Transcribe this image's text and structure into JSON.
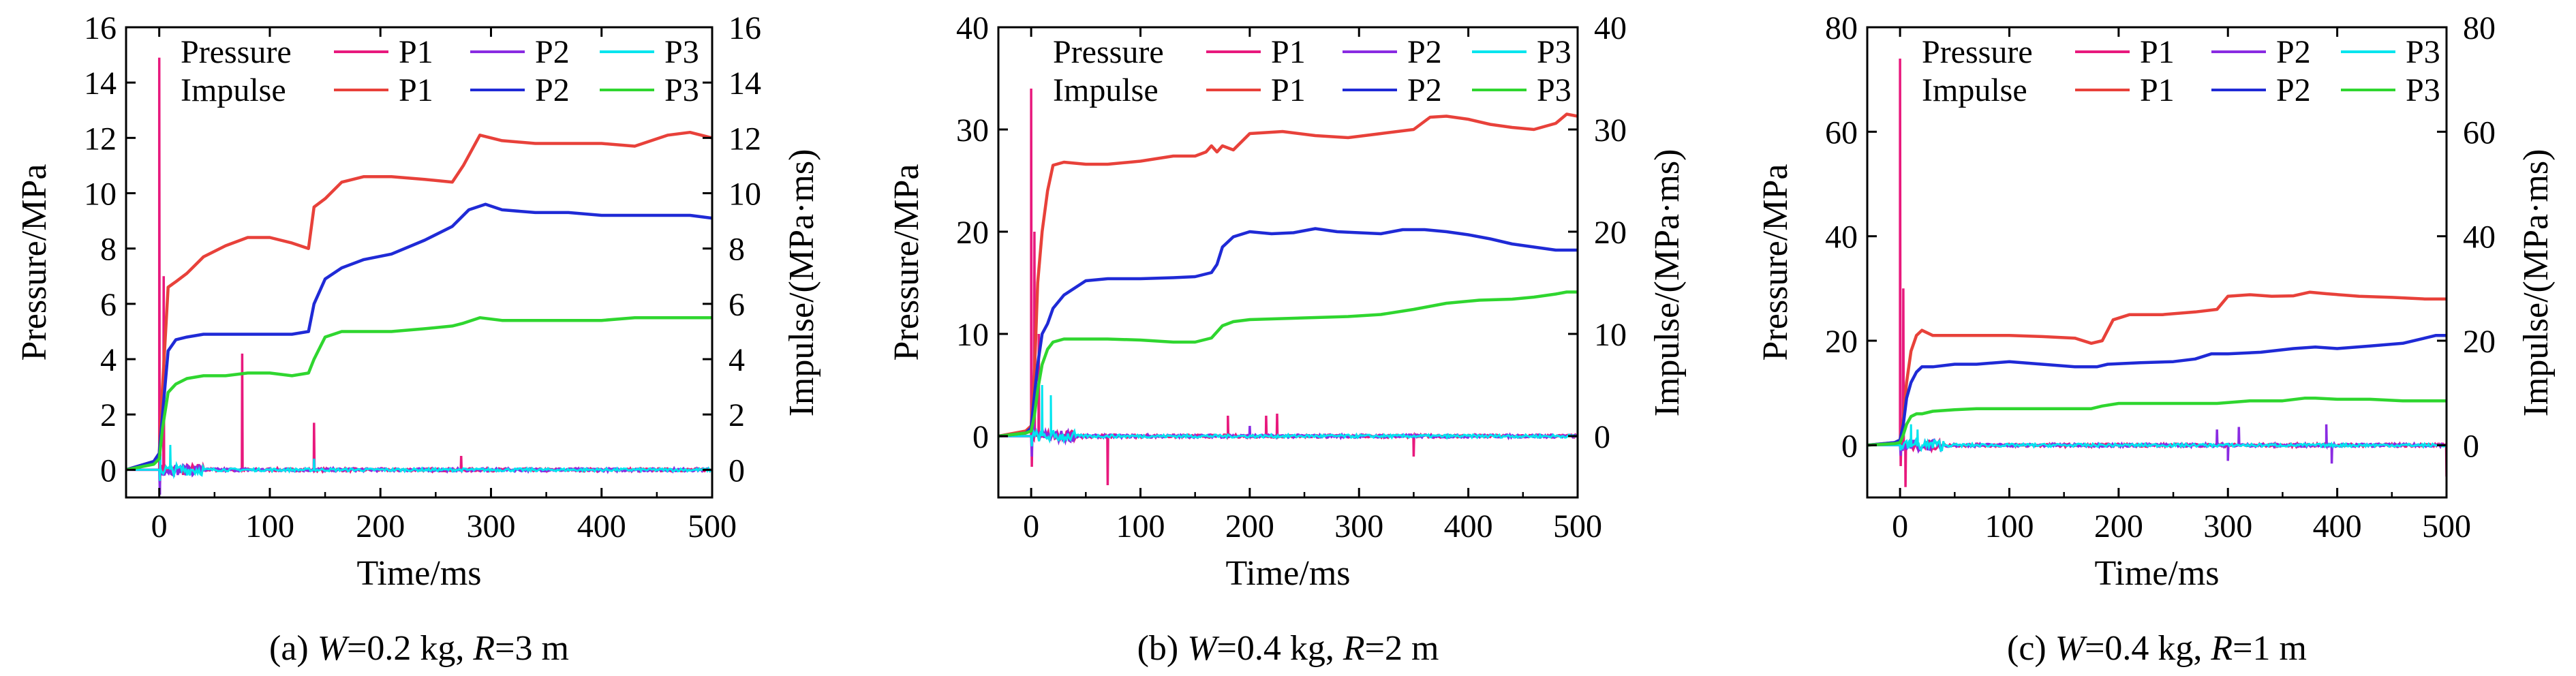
{
  "colors": {
    "pressure_P1": "#e8197d",
    "pressure_P2": "#8a2be2",
    "pressure_P3": "#00e5ee",
    "impulse_P1": "#e8413a",
    "impulse_P2": "#1f2ad6",
    "impulse_P3": "#2fd62f"
  },
  "chart_data": [
    {
      "type": "line",
      "title": "(a) W=0.2 kg, R=3 m",
      "title_parts": {
        "prefix": "(a) ",
        "w_symbol": "W",
        "w_value": "=0.2 kg, ",
        "r_symbol": "R",
        "r_value": "=3 m"
      },
      "xlabel": "Time/ms",
      "ylabel": "Pressure/MPa",
      "y2label": "Impulse/(MPa·ms)",
      "xlim": [
        -30,
        500
      ],
      "ylim": [
        -1,
        16
      ],
      "y2lim": [
        -1,
        16
      ],
      "xticks": [
        "0",
        "100",
        "200",
        "300",
        "400",
        "500"
      ],
      "yticks": [
        "0",
        "2",
        "4",
        "6",
        "8",
        "10",
        "12",
        "14",
        "16"
      ],
      "y2ticks": [
        "0",
        "2",
        "4",
        "6",
        "8",
        "10",
        "12",
        "14",
        "16"
      ],
      "legend": {
        "placement": "top",
        "rows": [
          {
            "label": "Pressure",
            "entries": [
              "P1",
              "P2",
              "P3"
            ]
          },
          {
            "label": "Impulse",
            "entries": [
              "P1",
              "P2",
              "P3"
            ]
          }
        ]
      },
      "pressure": [
        {
          "name": "P1",
          "spikes": [
            [
              0,
              14.9
            ],
            [
              4,
              7.0
            ],
            [
              75,
              4.2
            ],
            [
              140,
              1.7
            ],
            [
              273,
              0.5
            ]
          ],
          "min": -0.6
        },
        {
          "name": "P2",
          "spikes": [
            [
              1,
              0.9
            ],
            [
              140,
              0.4
            ]
          ],
          "min": -0.9
        },
        {
          "name": "P3",
          "spikes": [
            [
              1,
              0.5
            ],
            [
              10,
              0.9
            ],
            [
              140,
              0.4
            ]
          ],
          "min": -0.4
        }
      ],
      "impulse": [
        {
          "name": "P1",
          "x": [
            -30,
            -5,
            0,
            3,
            8,
            15,
            25,
            40,
            60,
            80,
            100,
            120,
            135,
            140,
            150,
            165,
            185,
            210,
            240,
            265,
            275,
            290,
            310,
            340,
            370,
            400,
            430,
            460,
            480,
            500
          ],
          "y": [
            0,
            0.3,
            0.6,
            3.0,
            6.6,
            6.8,
            7.1,
            7.7,
            8.1,
            8.4,
            8.4,
            8.2,
            8.0,
            9.5,
            9.8,
            10.4,
            10.6,
            10.6,
            10.5,
            10.4,
            11.0,
            12.1,
            11.9,
            11.8,
            11.8,
            11.8,
            11.7,
            12.1,
            12.2,
            12.0
          ]
        },
        {
          "name": "P2",
          "x": [
            -30,
            -5,
            0,
            3,
            8,
            15,
            25,
            40,
            60,
            80,
            100,
            120,
            135,
            140,
            150,
            165,
            185,
            210,
            240,
            265,
            280,
            295,
            310,
            340,
            370,
            400,
            430,
            460,
            480,
            500
          ],
          "y": [
            0,
            0.3,
            0.6,
            2.0,
            4.3,
            4.7,
            4.8,
            4.9,
            4.9,
            4.9,
            4.9,
            4.9,
            5.0,
            6.0,
            6.9,
            7.3,
            7.6,
            7.8,
            8.3,
            8.8,
            9.4,
            9.6,
            9.4,
            9.3,
            9.3,
            9.2,
            9.2,
            9.2,
            9.2,
            9.1
          ]
        },
        {
          "name": "P3",
          "x": [
            -30,
            -5,
            0,
            3,
            8,
            15,
            25,
            40,
            60,
            80,
            100,
            120,
            135,
            140,
            150,
            165,
            185,
            210,
            240,
            265,
            275,
            290,
            310,
            340,
            370,
            400,
            430,
            460,
            480,
            500
          ],
          "y": [
            0,
            0.2,
            0.4,
            1.5,
            2.8,
            3.1,
            3.3,
            3.4,
            3.4,
            3.5,
            3.5,
            3.4,
            3.5,
            4.0,
            4.8,
            5.0,
            5.0,
            5.0,
            5.1,
            5.2,
            5.3,
            5.5,
            5.4,
            5.4,
            5.4,
            5.4,
            5.5,
            5.5,
            5.5,
            5.5
          ]
        }
      ]
    },
    {
      "type": "line",
      "title": "(b) W=0.4 kg, R=2 m",
      "title_parts": {
        "prefix": "(b) ",
        "w_symbol": "W",
        "w_value": "=0.4 kg, ",
        "r_symbol": "R",
        "r_value": "=2 m"
      },
      "xlabel": "Time/ms",
      "ylabel": "Pressure/MPa",
      "y2label": "Impulse/(MPa·ms)",
      "xlim": [
        -30,
        500
      ],
      "ylim": [
        -6,
        40
      ],
      "y2lim": [
        -6,
        40
      ],
      "xticks": [
        "0",
        "100",
        "200",
        "300",
        "400",
        "500"
      ],
      "yticks": [
        "0",
        "10",
        "20",
        "30",
        "40"
      ],
      "y2ticks": [
        "0",
        "10",
        "20",
        "30",
        "40"
      ],
      "legend": {
        "placement": "top",
        "rows": [
          {
            "label": "Pressure",
            "entries": [
              "P1",
              "P2",
              "P3"
            ]
          },
          {
            "label": "Impulse",
            "entries": [
              "P1",
              "P2",
              "P3"
            ]
          }
        ]
      },
      "pressure": [
        {
          "name": "P1",
          "spikes": [
            [
              0,
              34.0
            ],
            [
              3,
              20.0
            ],
            [
              7,
              10.0
            ],
            [
              180,
              2.0
            ],
            [
              215,
              2.0
            ],
            [
              225,
              2.2
            ],
            [
              70,
              -4.8
            ],
            [
              350,
              -2.0
            ]
          ],
          "min": -3.0
        },
        {
          "name": "P2",
          "spikes": [
            [
              2,
              4.0
            ],
            [
              200,
              1.0
            ]
          ],
          "min": -2.0
        },
        {
          "name": "P3",
          "spikes": [
            [
              10,
              5.0
            ],
            [
              18,
              4.0
            ]
          ],
          "min": -1.0
        }
      ],
      "impulse": [
        {
          "name": "P1",
          "x": [
            -30,
            -5,
            0,
            3,
            6,
            10,
            15,
            20,
            30,
            50,
            70,
            100,
            130,
            150,
            160,
            165,
            170,
            175,
            185,
            200,
            230,
            260,
            290,
            320,
            350,
            365,
            380,
            400,
            420,
            440,
            460,
            480,
            490,
            500
          ],
          "y": [
            0,
            0.5,
            1.0,
            6.0,
            15.0,
            20.0,
            24.0,
            26.5,
            26.8,
            26.6,
            26.6,
            26.9,
            27.4,
            27.4,
            27.8,
            28.4,
            27.8,
            28.4,
            28.0,
            29.6,
            29.8,
            29.4,
            29.2,
            29.6,
            30.0,
            31.2,
            31.3,
            31.0,
            30.5,
            30.2,
            30.0,
            30.6,
            31.5,
            31.3
          ]
        },
        {
          "name": "P2",
          "x": [
            -30,
            -5,
            0,
            3,
            6,
            10,
            15,
            20,
            30,
            50,
            70,
            100,
            130,
            150,
            165,
            170,
            175,
            185,
            200,
            220,
            240,
            260,
            280,
            300,
            320,
            340,
            360,
            380,
            400,
            420,
            440,
            460,
            480,
            500
          ],
          "y": [
            0,
            0.3,
            0.8,
            4.0,
            7.0,
            10.0,
            11.0,
            12.5,
            13.8,
            15.2,
            15.4,
            15.4,
            15.5,
            15.6,
            16.0,
            16.8,
            18.5,
            19.5,
            20.0,
            19.8,
            19.9,
            20.3,
            20.0,
            19.9,
            19.8,
            20.2,
            20.2,
            20.0,
            19.7,
            19.3,
            18.8,
            18.5,
            18.2,
            18.2
          ]
        },
        {
          "name": "P3",
          "x": [
            -30,
            -5,
            0,
            3,
            6,
            10,
            15,
            20,
            30,
            50,
            70,
            100,
            130,
            150,
            165,
            170,
            175,
            185,
            200,
            230,
            260,
            290,
            320,
            350,
            380,
            410,
            440,
            460,
            480,
            490,
            500
          ],
          "y": [
            0,
            0.3,
            0.5,
            2.0,
            4.5,
            7.0,
            8.5,
            9.2,
            9.5,
            9.5,
            9.5,
            9.4,
            9.2,
            9.2,
            9.6,
            10.2,
            10.8,
            11.2,
            11.4,
            11.5,
            11.6,
            11.7,
            11.9,
            12.4,
            13.0,
            13.3,
            13.4,
            13.6,
            13.9,
            14.1,
            14.1
          ]
        }
      ]
    },
    {
      "type": "line",
      "title": "(c) W=0.4 kg, R=1 m",
      "title_parts": {
        "prefix": "(c) ",
        "w_symbol": "W",
        "w_value": "=0.4 kg, ",
        "r_symbol": "R",
        "r_value": "=1 m"
      },
      "xlabel": "Time/ms",
      "ylabel": "Pressure/MPa",
      "y2label": "Impulse/(MPa·ms)",
      "xlim": [
        -30,
        500
      ],
      "ylim": [
        -10,
        80
      ],
      "y2lim": [
        -10,
        80
      ],
      "xticks": [
        "0",
        "100",
        "200",
        "300",
        "400",
        "500"
      ],
      "yticks": [
        "0",
        "20",
        "40",
        "60",
        "80"
      ],
      "y2ticks": [
        "0",
        "20",
        "40",
        "60",
        "80"
      ],
      "legend": {
        "placement": "top",
        "rows": [
          {
            "label": "Pressure",
            "entries": [
              "P1",
              "P2",
              "P3"
            ]
          },
          {
            "label": "Impulse",
            "entries": [
              "P1",
              "P2",
              "P3"
            ]
          }
        ]
      },
      "pressure": [
        {
          "name": "P1",
          "spikes": [
            [
              0,
              74.0
            ],
            [
              3,
              30.0
            ],
            [
              5,
              -8.0
            ],
            [
              500,
              -6.0
            ]
          ],
          "min": -4.0
        },
        {
          "name": "P2",
          "spikes": [
            [
              290,
              3.0
            ],
            [
              300,
              -3.0
            ],
            [
              310,
              3.5
            ],
            [
              390,
              4.0
            ],
            [
              395,
              -3.5
            ]
          ],
          "min": -2.0
        },
        {
          "name": "P3",
          "spikes": [
            [
              10,
              4.0
            ],
            [
              16,
              3.0
            ]
          ],
          "min": -1.0
        }
      ],
      "impulse": [
        {
          "name": "P1",
          "x": [
            -30,
            -5,
            0,
            3,
            6,
            10,
            15,
            20,
            30,
            50,
            70,
            100,
            130,
            160,
            175,
            185,
            195,
            210,
            240,
            270,
            290,
            300,
            320,
            340,
            360,
            375,
            390,
            420,
            450,
            480,
            500
          ],
          "y": [
            0,
            0.5,
            1.0,
            5.0,
            12.0,
            18.0,
            21.0,
            22.0,
            21.0,
            21.0,
            21.0,
            21.0,
            20.8,
            20.5,
            19.5,
            20.0,
            24.0,
            25.0,
            25.0,
            25.5,
            26.0,
            28.5,
            28.8,
            28.5,
            28.6,
            29.3,
            29.0,
            28.5,
            28.3,
            28.0,
            28.0
          ]
        },
        {
          "name": "P2",
          "x": [
            -30,
            -5,
            0,
            3,
            6,
            10,
            15,
            20,
            30,
            50,
            70,
            100,
            130,
            160,
            180,
            190,
            220,
            250,
            270,
            285,
            300,
            330,
            360,
            380,
            400,
            430,
            460,
            480,
            490,
            500
          ],
          "y": [
            0,
            0.5,
            1.0,
            4.0,
            9.0,
            12.0,
            14.0,
            15.0,
            15.0,
            15.5,
            15.5,
            16.0,
            15.5,
            15.0,
            15.0,
            15.5,
            15.8,
            16.0,
            16.5,
            17.5,
            17.5,
            17.8,
            18.5,
            18.8,
            18.5,
            19.0,
            19.5,
            20.5,
            21.0,
            21.0
          ]
        },
        {
          "name": "P3",
          "x": [
            -30,
            -5,
            0,
            3,
            6,
            10,
            15,
            20,
            30,
            50,
            70,
            100,
            130,
            160,
            175,
            185,
            200,
            230,
            260,
            290,
            320,
            350,
            370,
            380,
            400,
            430,
            460,
            480,
            500
          ],
          "y": [
            0,
            0.3,
            0.5,
            2.0,
            4.0,
            5.5,
            6.0,
            6.0,
            6.5,
            6.8,
            7.0,
            7.0,
            7.0,
            7.0,
            7.0,
            7.5,
            8.0,
            8.0,
            8.0,
            8.0,
            8.5,
            8.5,
            9.0,
            9.0,
            8.8,
            8.8,
            8.5,
            8.5,
            8.5
          ]
        }
      ]
    }
  ]
}
